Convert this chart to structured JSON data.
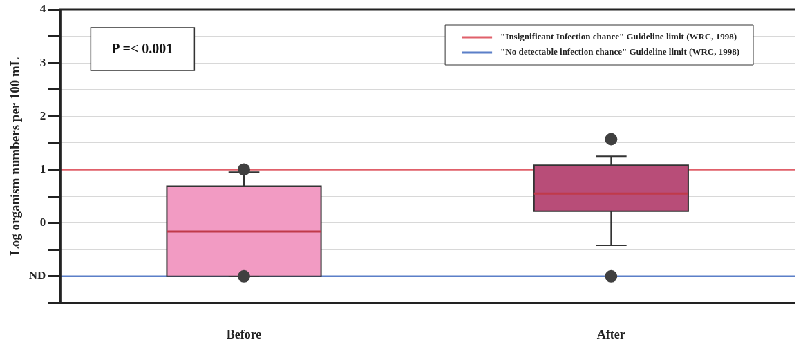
{
  "chart_data": {
    "type": "box",
    "ylabel": "Log organism numbers per 100 mL",
    "categories": [
      "Before",
      "After"
    ],
    "series": [
      {
        "colors": [
          "#f29bc3",
          "#b84d78"
        ],
        "boxes": [
          {
            "low": -1,
            "q1": -1,
            "median": -0.16,
            "q3": 0.69,
            "high": 0.95,
            "outliers": [
              1.0,
              -1
            ]
          },
          {
            "low": -0.42,
            "q1": 0.22,
            "median": 0.55,
            "q3": 1.08,
            "high": 1.25,
            "outliers": [
              1.57,
              -1
            ]
          }
        ]
      }
    ],
    "ylim": [
      -1.5,
      4
    ],
    "yticks": [
      {
        "value": -1.5,
        "label": null
      },
      {
        "value": -1,
        "label": "ND"
      },
      {
        "value": -0.5,
        "label": null
      },
      0,
      {
        "value": 0.5,
        "label": null
      },
      1,
      {
        "value": 1.5,
        "label": null
      },
      2,
      {
        "value": 2.5,
        "label": null
      },
      3,
      {
        "value": 3.5,
        "label": null
      },
      4
    ],
    "ref_lines": [
      {
        "axis": "y",
        "value": 1,
        "label": "\"Insignificant Infection chance\" Guideline limit (WRC, 1998)",
        "color": "#e0606a"
      },
      {
        "axis": "y",
        "value": -1,
        "label": "\"No detectable infection chance\" Guideline limit (WRC, 1998)",
        "color": "#5b7fc8"
      }
    ],
    "annotations": [
      "P =< 0.001"
    ],
    "grid": "y",
    "legend": "top right"
  }
}
